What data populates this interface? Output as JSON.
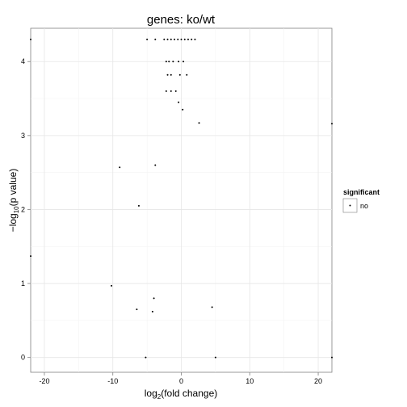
{
  "chart_data": {
    "type": "scatter",
    "title": "genes: ko/wt",
    "xlabel": {
      "prefix": "log",
      "sub": "2",
      "suffix": "(fold change)"
    },
    "ylabel": {
      "prefix": "−log",
      "sub": "10",
      "suffix": "(p value)"
    },
    "xlim": [
      -22,
      22
    ],
    "ylim": [
      -0.2,
      4.45
    ],
    "xticks": [
      -20,
      -10,
      0,
      10,
      20
    ],
    "yticks": [
      0,
      1,
      2,
      3,
      4
    ],
    "grid": true,
    "legend": {
      "title": "significant",
      "position": "right",
      "entries": [
        {
          "label": "no",
          "color": "#000000"
        }
      ]
    },
    "series": [
      {
        "label": "no",
        "color": "#000000",
        "points": [
          [
            -22,
            4.3
          ],
          [
            -22,
            1.37
          ],
          [
            22,
            3.16
          ],
          [
            22,
            0.0
          ],
          [
            -9.0,
            2.57
          ],
          [
            -6.2,
            2.05
          ],
          [
            -10.2,
            0.97
          ],
          [
            -6.5,
            0.65
          ],
          [
            -4.2,
            0.62
          ],
          [
            4.5,
            0.68
          ],
          [
            -3.8,
            2.6
          ],
          [
            2.6,
            3.17
          ],
          [
            -4.0,
            0.8
          ],
          [
            -5.2,
            0.0
          ],
          [
            5.0,
            0.0
          ],
          [
            -5.0,
            4.3
          ],
          [
            -3.8,
            4.3
          ],
          [
            -2.5,
            4.3
          ],
          [
            -2.0,
            4.3
          ],
          [
            -1.5,
            4.3
          ],
          [
            -1.0,
            4.3
          ],
          [
            -0.5,
            4.3
          ],
          [
            0,
            4.3
          ],
          [
            0.5,
            4.3
          ],
          [
            1.0,
            4.3
          ],
          [
            1.5,
            4.3
          ],
          [
            2.0,
            4.3
          ],
          [
            -2.2,
            4.0
          ],
          [
            -1.8,
            4.0
          ],
          [
            -1.2,
            4.0
          ],
          [
            -0.4,
            4.0
          ],
          [
            0.3,
            4.0
          ],
          [
            -2.0,
            3.82
          ],
          [
            -1.5,
            3.82
          ],
          [
            -0.2,
            3.82
          ],
          [
            0.8,
            3.82
          ],
          [
            -2.2,
            3.6
          ],
          [
            -1.5,
            3.6
          ],
          [
            -0.8,
            3.6
          ],
          [
            -0.4,
            3.45
          ],
          [
            0.2,
            3.35
          ]
        ]
      }
    ]
  }
}
